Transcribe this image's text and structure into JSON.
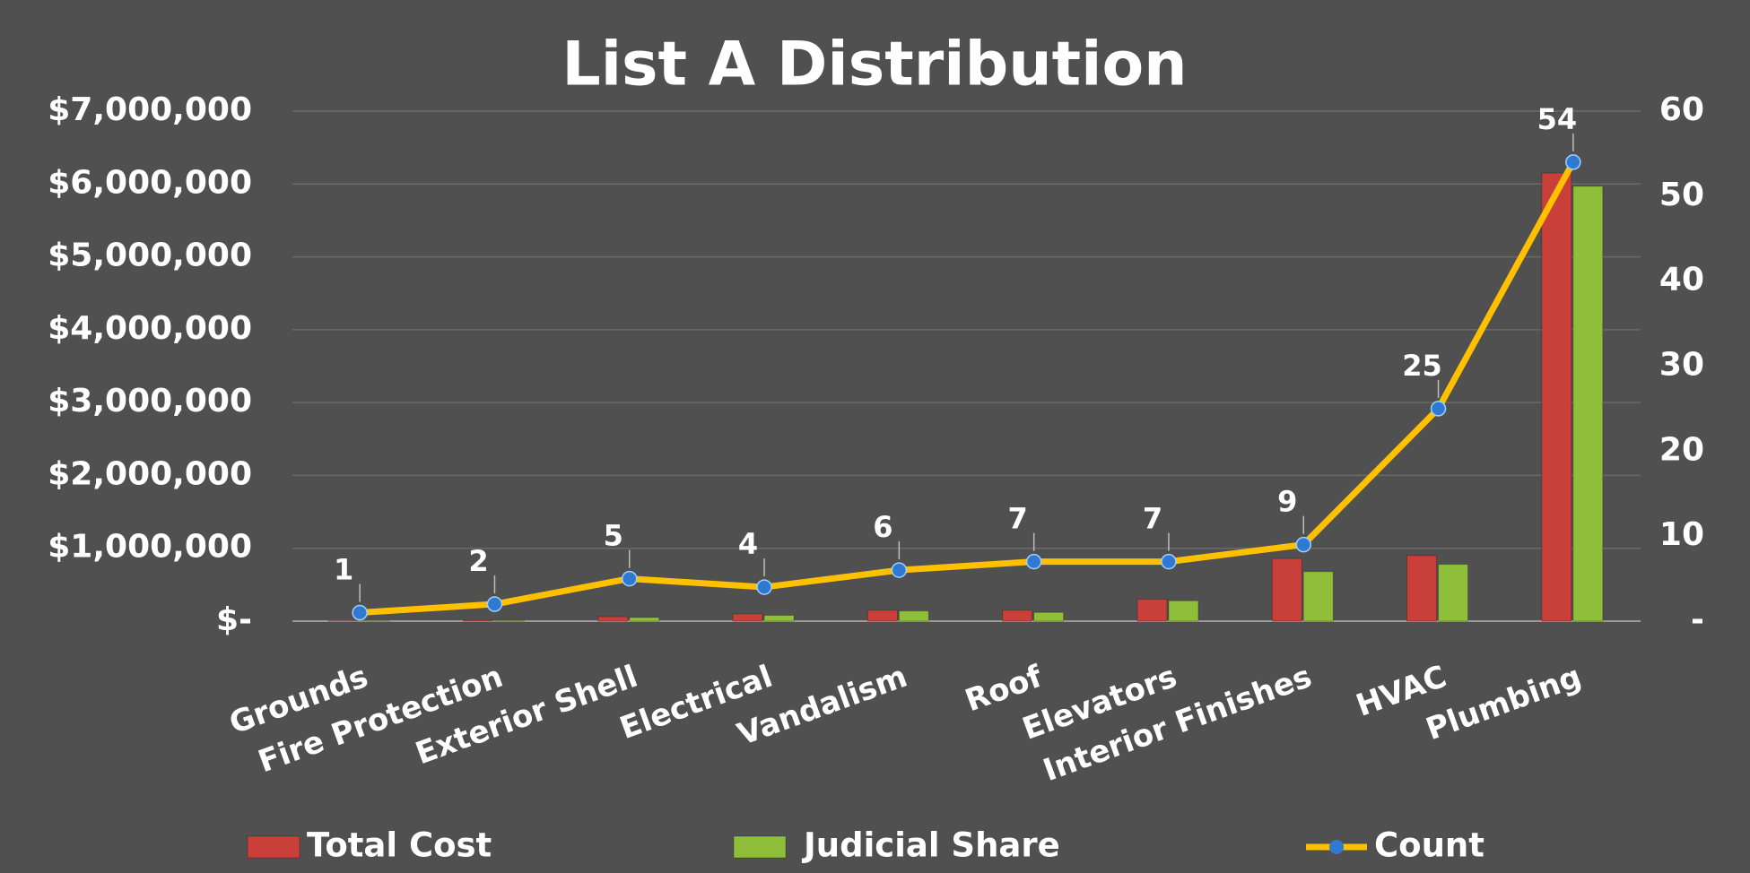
{
  "chart_data": {
    "type": "bar",
    "title": "List A Distribution",
    "categories": [
      "Grounds",
      "Fire Protection",
      "Exterior Shell",
      "Electrical",
      "Vandalism",
      "Roof",
      "Elevators",
      "Interior Finishes",
      "HVAC",
      "Plumbing"
    ],
    "series": [
      {
        "name": "Total Cost",
        "color": "#c9403a",
        "values": [
          5000,
          10000,
          60000,
          100000,
          150000,
          150000,
          300000,
          860000,
          900000,
          6150000
        ]
      },
      {
        "name": "Judicial Share",
        "color": "#8fbf3a",
        "values": [
          4000,
          8000,
          50000,
          80000,
          140000,
          120000,
          280000,
          680000,
          780000,
          5970000
        ]
      },
      {
        "name": "Count",
        "type": "line",
        "axis": "y2",
        "color": "#ffc000",
        "marker_color": "#2f7ad0",
        "values": [
          1,
          2,
          5,
          4,
          6,
          7,
          7,
          9,
          25,
          54
        ]
      }
    ],
    "ylim": [
      0,
      7000000
    ],
    "yticks": [
      {
        "value": 0,
        "label": "$-"
      },
      {
        "value": 1000000,
        "label": "$1,000,000"
      },
      {
        "value": 2000000,
        "label": "$2,000,000"
      },
      {
        "value": 3000000,
        "label": "$3,000,000"
      },
      {
        "value": 4000000,
        "label": "$4,000,000"
      },
      {
        "value": 5000000,
        "label": "$5,000,000"
      },
      {
        "value": 6000000,
        "label": "$6,000,000"
      },
      {
        "value": 7000000,
        "label": "$7,000,000"
      }
    ],
    "y2lim": [
      0,
      60
    ],
    "y2ticks": [
      {
        "value": 0,
        "label": "-"
      },
      10,
      20,
      30,
      40,
      50,
      60
    ],
    "grid": true,
    "legend": "bottom"
  }
}
